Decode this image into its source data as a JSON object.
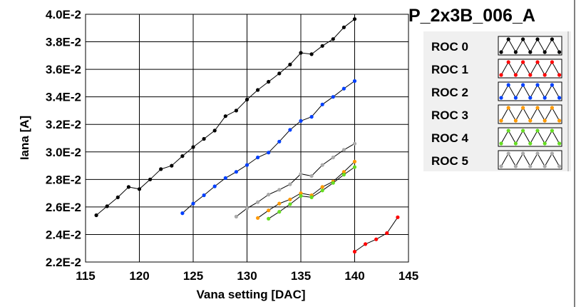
{
  "legend": {
    "title": "P_2x3B_006_A"
  },
  "chart_data": {
    "type": "line",
    "title": "",
    "xlabel": "Vana setting [DAC]",
    "ylabel": "Iana [A]",
    "xlim": [
      115,
      145
    ],
    "ylim": [
      0.022,
      0.04
    ],
    "x_ticks": [
      "115",
      "120",
      "125",
      "130",
      "135",
      "140",
      "145"
    ],
    "y_ticks": [
      "2.2E-2",
      "2.4E-2",
      "2.6E-2",
      "2.8E-2",
      "3.0E-2",
      "3.2E-2",
      "3.4E-2",
      "3.6E-2",
      "3.8E-2",
      "4.0E-2"
    ],
    "grid": true,
    "legend_position": "right",
    "series": [
      {
        "name": "ROC 0",
        "color": "#000000",
        "x": [
          116,
          117,
          118,
          119,
          120,
          121,
          122,
          123,
          124,
          125,
          126,
          127,
          128,
          129,
          130,
          131,
          132,
          133,
          134,
          135,
          136,
          137,
          138,
          139,
          140
        ],
        "y": [
          0.0254,
          0.02605,
          0.0267,
          0.02745,
          0.0273,
          0.028,
          0.02875,
          0.029,
          0.0297,
          0.03035,
          0.03095,
          0.03155,
          0.0326,
          0.033,
          0.0338,
          0.0345,
          0.0351,
          0.0357,
          0.03635,
          0.0372,
          0.0371,
          0.0377,
          0.0382,
          0.03905,
          0.03965
        ]
      },
      {
        "name": "ROC 1",
        "color": "#ff0000",
        "x": [
          140,
          141,
          142,
          143,
          144
        ],
        "y": [
          0.02275,
          0.0233,
          0.02365,
          0.0241,
          0.02525
        ]
      },
      {
        "name": "ROC 2",
        "color": "#0040ff",
        "x": [
          124,
          125,
          126,
          127,
          128,
          129,
          130,
          131,
          132,
          133,
          134,
          135,
          136,
          137,
          138,
          139,
          140
        ],
        "y": [
          0.02555,
          0.02625,
          0.02685,
          0.0275,
          0.0281,
          0.02855,
          0.02905,
          0.0296,
          0.02995,
          0.03075,
          0.0316,
          0.03225,
          0.03255,
          0.03345,
          0.034,
          0.0346,
          0.03515
        ]
      },
      {
        "name": "ROC 3",
        "color": "#ff9900",
        "x": [
          131,
          132,
          133,
          134,
          135,
          136,
          137,
          138,
          139,
          140
        ],
        "y": [
          0.0252,
          0.02575,
          0.02625,
          0.02655,
          0.027,
          0.02685,
          0.02745,
          0.02785,
          0.02855,
          0.0293
        ]
      },
      {
        "name": "ROC 4",
        "color": "#66dd22",
        "x": [
          132,
          133,
          134,
          135,
          136,
          137,
          138,
          139,
          140
        ],
        "y": [
          0.02515,
          0.02565,
          0.0262,
          0.0268,
          0.0267,
          0.0272,
          0.02775,
          0.02835,
          0.0289
        ]
      },
      {
        "name": "ROC 5",
        "color": "#aaaaaa",
        "x": [
          129,
          130,
          131,
          132,
          133,
          134,
          135,
          136,
          137,
          138,
          139,
          140
        ],
        "y": [
          0.0253,
          0.0259,
          0.02635,
          0.0269,
          0.02725,
          0.02765,
          0.0284,
          0.02825,
          0.02905,
          0.0296,
          0.03015,
          0.0306
        ]
      }
    ]
  }
}
